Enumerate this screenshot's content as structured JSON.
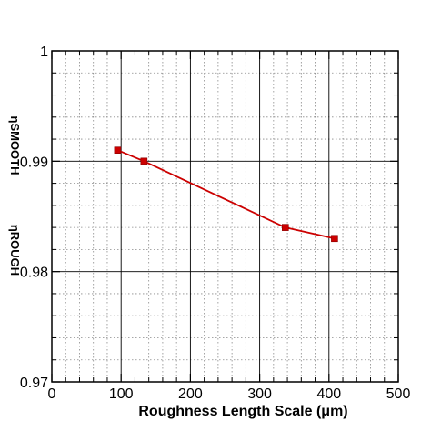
{
  "chart_data": {
    "type": "line",
    "title": "",
    "xlabel": "Roughness Length Scale (μm)",
    "ylabel_parts": [
      "ηROUGH",
      "ηSMOOTH"
    ],
    "xlim": [
      0,
      500
    ],
    "ylim": [
      0.97,
      1
    ],
    "x_ticks": [
      0,
      100,
      200,
      300,
      400,
      500
    ],
    "x_tick_labels": [
      "0",
      "100",
      "200",
      "300",
      "400",
      "500"
    ],
    "y_ticks": [
      0.97,
      0.98,
      0.99,
      1
    ],
    "y_tick_labels": [
      "0.97",
      "0.98",
      "0.99",
      "1"
    ],
    "grid": true,
    "minor_grid": true,
    "series": [
      {
        "color": "#cc0000",
        "marker": "square",
        "x": [
          95,
          133,
          337,
          408
        ],
        "y": [
          0.991,
          0.99,
          0.984,
          0.983
        ]
      }
    ]
  }
}
